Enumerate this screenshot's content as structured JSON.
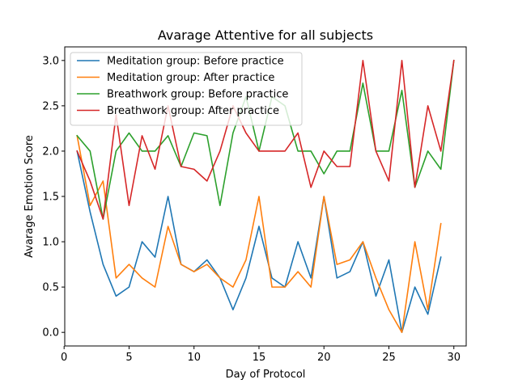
{
  "chart_data": {
    "type": "line",
    "title": "Avarage Attentive for all subjects",
    "xlabel": "Day of Protocol",
    "ylabel": "Avarage Emotion Score",
    "xlim": [
      0.05,
      30.95
    ],
    "ylim": [
      -0.15,
      3.15
    ],
    "xticks": [
      0,
      5,
      10,
      15,
      20,
      25,
      30
    ],
    "yticks": [
      0.0,
      0.5,
      1.0,
      1.5,
      2.0,
      2.5,
      3.0
    ],
    "xtick_labels": [
      "0",
      "5",
      "10",
      "15",
      "20",
      "25",
      "30"
    ],
    "ytick_labels": [
      "0.0",
      "0.5",
      "1.0",
      "1.5",
      "2.0",
      "2.5",
      "3.0"
    ],
    "legend_position": "top-left",
    "series": [
      {
        "name": "Meditation group: Before practice",
        "color": "#1f77b4",
        "x": [
          1,
          2,
          3,
          4,
          5,
          6,
          7,
          8,
          9,
          10,
          11,
          12,
          13,
          14,
          15,
          16,
          17,
          18,
          19,
          20,
          21,
          22,
          23,
          24,
          25,
          26,
          27,
          28,
          29
        ],
        "values": [
          2.0,
          1.33,
          0.75,
          0.4,
          0.5,
          1.0,
          0.83,
          1.5,
          0.75,
          0.67,
          0.8,
          0.6,
          0.25,
          0.6,
          1.17,
          0.6,
          0.5,
          1.0,
          0.6,
          1.5,
          0.6,
          0.67,
          1.0,
          0.4,
          0.8,
          0.0,
          0.5,
          0.2,
          0.83
        ]
      },
      {
        "name": "Meditation group: After practice",
        "color": "#ff7f0e",
        "x": [
          1,
          2,
          3,
          4,
          5,
          6,
          7,
          8,
          9,
          10,
          11,
          12,
          13,
          14,
          15,
          16,
          17,
          18,
          19,
          20,
          21,
          22,
          23,
          24,
          25,
          26,
          27,
          28,
          29
        ],
        "values": [
          2.17,
          1.4,
          1.67,
          0.6,
          0.75,
          0.6,
          0.5,
          1.17,
          0.75,
          0.67,
          0.75,
          0.6,
          0.5,
          0.8,
          1.5,
          0.5,
          0.5,
          0.67,
          0.5,
          1.5,
          0.75,
          0.8,
          1.0,
          0.6,
          0.25,
          0.0,
          1.0,
          0.25,
          1.2
        ]
      },
      {
        "name": "Breathwork group: Before practice",
        "color": "#2ca02c",
        "x": [
          1,
          2,
          3,
          4,
          5,
          6,
          7,
          8,
          9,
          10,
          11,
          12,
          13,
          14,
          15,
          16,
          17,
          18,
          19,
          20,
          21,
          22,
          23,
          24,
          25,
          26,
          27,
          28,
          29,
          30
        ],
        "values": [
          2.17,
          2.0,
          1.25,
          2.0,
          2.2,
          2.0,
          2.0,
          2.17,
          1.83,
          2.2,
          2.17,
          1.4,
          2.2,
          2.6,
          2.0,
          2.6,
          2.5,
          2.0,
          2.0,
          1.75,
          2.0,
          2.0,
          2.75,
          2.0,
          2.0,
          2.67,
          1.6,
          2.0,
          1.8,
          3.0
        ]
      },
      {
        "name": "Breathwork group: After practice",
        "color": "#d62728",
        "x": [
          1,
          2,
          3,
          4,
          5,
          6,
          7,
          8,
          9,
          10,
          11,
          12,
          13,
          14,
          15,
          16,
          17,
          18,
          19,
          20,
          21,
          22,
          23,
          24,
          25,
          26,
          27,
          28,
          29,
          30
        ],
        "values": [
          2.0,
          1.67,
          1.25,
          2.4,
          1.4,
          2.17,
          1.8,
          2.5,
          1.83,
          1.8,
          1.67,
          2.0,
          2.5,
          2.2,
          2.0,
          2.0,
          2.0,
          2.2,
          1.6,
          2.0,
          1.83,
          1.83,
          3.0,
          2.0,
          1.67,
          3.0,
          1.6,
          2.5,
          2.0,
          3.0
        ]
      }
    ]
  }
}
